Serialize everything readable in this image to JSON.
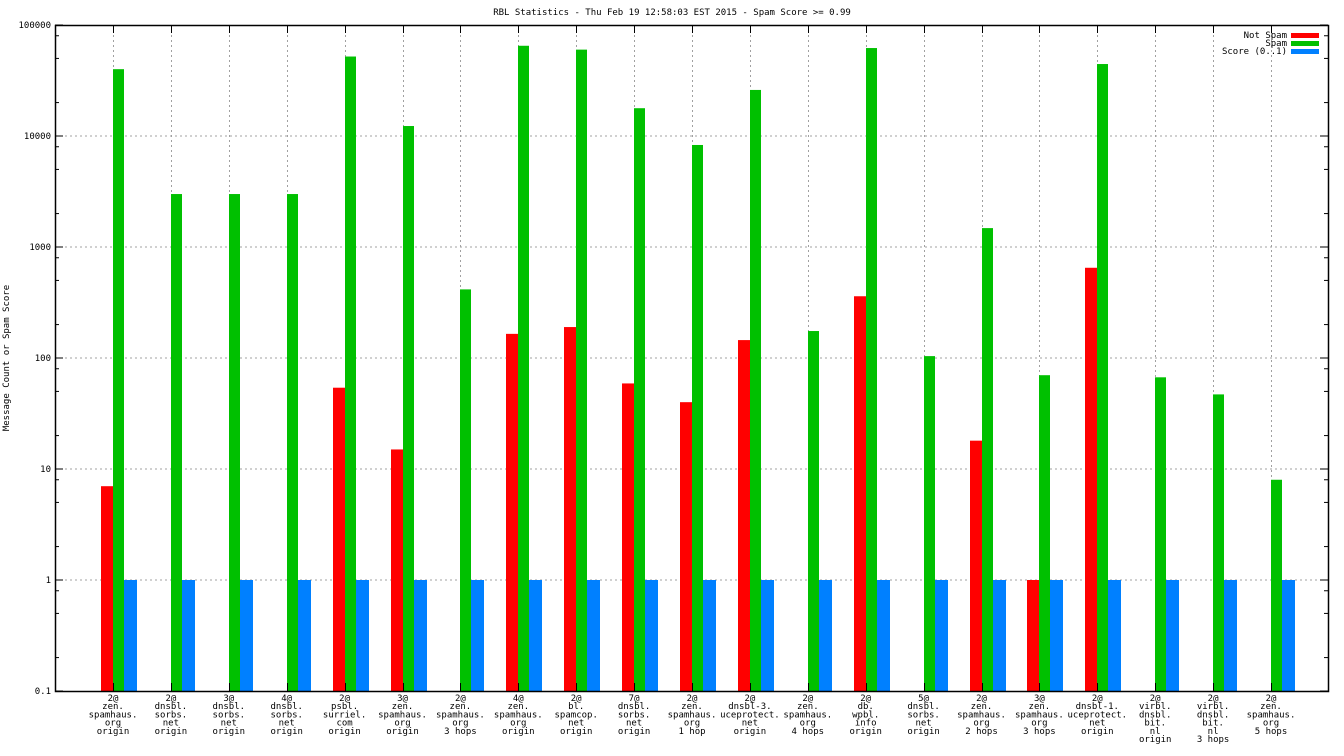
{
  "chart_data": {
    "type": "bar",
    "title": "RBL Statistics - Thu Feb 19 12:58:03 EST 2015 - Spam Score >= 0.99",
    "xlabel": "",
    "ylabel": "Message Count or Spam Score",
    "yscale": "log",
    "ylim": [
      0.1,
      100000
    ],
    "yticks": [
      "0.1",
      "1",
      "10",
      "100",
      "1000",
      "10000",
      "100000"
    ],
    "ytick_values": [
      0.1,
      1,
      10,
      100,
      1000,
      10000,
      100000
    ],
    "grid": true,
    "legend_position": "top-right",
    "categories": [
      [
        "2@",
        "zen.",
        "spamhaus.",
        "org",
        "origin"
      ],
      [
        "2@",
        "dnsbl.",
        "sorbs.",
        "net",
        "origin"
      ],
      [
        "3@",
        "dnsbl.",
        "sorbs.",
        "net",
        "origin"
      ],
      [
        "4@",
        "dnsbl.",
        "sorbs.",
        "net",
        "origin"
      ],
      [
        "2@",
        "psbl.",
        "surriel.",
        "com",
        "origin"
      ],
      [
        "3@",
        "zen.",
        "spamhaus.",
        "org",
        "origin"
      ],
      [
        "2@",
        "zen.",
        "spamhaus.",
        "org",
        "3 hops"
      ],
      [
        "4@",
        "zen.",
        "spamhaus.",
        "org",
        "origin"
      ],
      [
        "2@",
        "bl.",
        "spamcop.",
        "net",
        "origin"
      ],
      [
        "7@",
        "dnsbl.",
        "sorbs.",
        "net",
        "origin"
      ],
      [
        "2@",
        "zen.",
        "spamhaus.",
        "org",
        "1 hop"
      ],
      [
        "2@",
        "dnsbl-3.",
        "uceprotect.",
        "net",
        "origin"
      ],
      [
        "2@",
        "zen.",
        "spamhaus.",
        "org",
        "4 hops"
      ],
      [
        "2@",
        "db.",
        "wpbl.",
        "info",
        "origin"
      ],
      [
        "5@",
        "dnsbl.",
        "sorbs.",
        "net",
        "origin"
      ],
      [
        "2@",
        "zen.",
        "spamhaus.",
        "org",
        "2 hops"
      ],
      [
        "3@",
        "zen.",
        "spamhaus.",
        "org",
        "3 hops"
      ],
      [
        "2@",
        "dnsbl-1.",
        "uceprotect.",
        "net",
        "origin"
      ],
      [
        "2@",
        "virbl.",
        "dnsbl.",
        "bit.",
        "nl",
        "origin"
      ],
      [
        "2@",
        "virbl.",
        "dnsbl.",
        "bit.",
        "nl",
        "3 hops"
      ],
      [
        "2@",
        "zen.",
        "spamhaus.",
        "org",
        "5 hops"
      ]
    ],
    "series": [
      {
        "name": "Not Spam",
        "color": "#ff0000",
        "values": [
          7,
          0,
          0,
          0,
          54,
          15,
          0,
          165,
          190,
          59,
          40,
          145,
          0,
          360,
          0,
          18,
          1,
          650,
          0,
          0,
          0
        ]
      },
      {
        "name": "Spam",
        "color": "#00c000",
        "values": [
          40000,
          3000,
          3000,
          3000,
          52000,
          12300,
          415,
          65000,
          60000,
          17800,
          8300,
          26000,
          175,
          62000,
          104,
          1480,
          70,
          44500,
          67,
          47,
          8
        ]
      },
      {
        "name": "Score (0..1)",
        "color": "#0080ff",
        "values": [
          1,
          1,
          1,
          1,
          1,
          1,
          1,
          1,
          1,
          1,
          1,
          1,
          1,
          1,
          1,
          1,
          1,
          1,
          1,
          1,
          1
        ]
      }
    ]
  }
}
